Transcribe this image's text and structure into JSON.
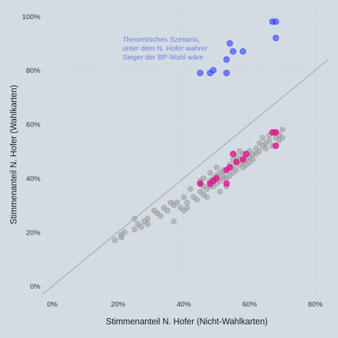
{
  "chart_data": {
    "type": "scatter",
    "title": "",
    "xlabel": "Stimmenanteil N. Hofer (Nicht-Wahlkarten)",
    "ylabel": "Stimmenanteil N. Hofer (Wahlkarten)",
    "xlim": [
      -0.03,
      0.84
    ],
    "ylim": [
      -0.03,
      1.03
    ],
    "x_ticks": [
      0,
      0.2,
      0.4,
      0.6,
      0.8
    ],
    "x_tick_labels": [
      "0%",
      "20%",
      "40%",
      "60%",
      "80%"
    ],
    "y_ticks": [
      0,
      0.2,
      0.4,
      0.6,
      0.8,
      1.0
    ],
    "y_tick_labels": [
      "0%",
      "20%",
      "40%",
      "60%",
      "80%",
      "100%"
    ],
    "grid": true,
    "grid_style": "dotted",
    "reference_line": {
      "type": "diagonal",
      "slope": 1,
      "intercept": 0,
      "color": "#a9adb1"
    },
    "annotation": {
      "lines": [
        "Theoretisches Szenario,",
        "unter dem N. Hofer wahrer",
        "Sieger der BP-Wahl wäre"
      ],
      "color": "#6f79e8"
    },
    "colors": {
      "background": "#d3dce3",
      "gray_points": "#9a9a9a",
      "pink_points": "#e0158a",
      "blue_points": "#2f3dff"
    },
    "series": [
      {
        "role": "other",
        "color": "#9a9a9a",
        "points": [
          [
            0.19,
            0.17
          ],
          [
            0.21,
            0.18
          ],
          [
            0.21,
            0.19
          ],
          [
            0.22,
            0.2
          ],
          [
            0.25,
            0.21
          ],
          [
            0.25,
            0.25
          ],
          [
            0.26,
            0.23
          ],
          [
            0.27,
            0.22
          ],
          [
            0.28,
            0.24
          ],
          [
            0.29,
            0.23
          ],
          [
            0.29,
            0.25
          ],
          [
            0.31,
            0.28
          ],
          [
            0.32,
            0.27
          ],
          [
            0.33,
            0.26
          ],
          [
            0.34,
            0.29
          ],
          [
            0.35,
            0.28
          ],
          [
            0.36,
            0.31
          ],
          [
            0.37,
            0.3
          ],
          [
            0.37,
            0.24
          ],
          [
            0.38,
            0.31
          ],
          [
            0.39,
            0.29
          ],
          [
            0.4,
            0.28
          ],
          [
            0.4,
            0.33
          ],
          [
            0.41,
            0.31
          ],
          [
            0.41,
            0.29
          ],
          [
            0.42,
            0.36
          ],
          [
            0.43,
            0.33
          ],
          [
            0.44,
            0.32
          ],
          [
            0.45,
            0.35
          ],
          [
            0.45,
            0.38
          ],
          [
            0.45,
            0.39
          ],
          [
            0.46,
            0.34
          ],
          [
            0.46,
            0.37
          ],
          [
            0.47,
            0.36
          ],
          [
            0.47,
            0.33
          ],
          [
            0.48,
            0.37
          ],
          [
            0.48,
            0.39
          ],
          [
            0.48,
            0.42
          ],
          [
            0.49,
            0.4
          ],
          [
            0.49,
            0.37
          ],
          [
            0.5,
            0.41
          ],
          [
            0.5,
            0.44
          ],
          [
            0.5,
            0.38
          ],
          [
            0.51,
            0.39
          ],
          [
            0.51,
            0.42
          ],
          [
            0.51,
            0.35
          ],
          [
            0.52,
            0.41
          ],
          [
            0.52,
            0.43
          ],
          [
            0.53,
            0.4
          ],
          [
            0.53,
            0.37
          ],
          [
            0.54,
            0.45
          ],
          [
            0.54,
            0.41
          ],
          [
            0.55,
            0.42
          ],
          [
            0.55,
            0.44
          ],
          [
            0.55,
            0.47
          ],
          [
            0.56,
            0.43
          ],
          [
            0.56,
            0.46
          ],
          [
            0.56,
            0.48
          ],
          [
            0.57,
            0.45
          ],
          [
            0.57,
            0.47
          ],
          [
            0.57,
            0.5
          ],
          [
            0.58,
            0.44
          ],
          [
            0.58,
            0.46
          ],
          [
            0.58,
            0.49
          ],
          [
            0.59,
            0.47
          ],
          [
            0.59,
            0.45
          ],
          [
            0.6,
            0.48
          ],
          [
            0.6,
            0.5
          ],
          [
            0.6,
            0.46
          ],
          [
            0.61,
            0.49
          ],
          [
            0.61,
            0.47
          ],
          [
            0.62,
            0.51
          ],
          [
            0.62,
            0.49
          ],
          [
            0.63,
            0.53
          ],
          [
            0.63,
            0.5
          ],
          [
            0.64,
            0.52
          ],
          [
            0.64,
            0.55
          ],
          [
            0.65,
            0.53
          ],
          [
            0.65,
            0.51
          ],
          [
            0.66,
            0.56
          ],
          [
            0.66,
            0.54
          ],
          [
            0.67,
            0.52
          ],
          [
            0.68,
            0.55
          ],
          [
            0.68,
            0.57
          ],
          [
            0.69,
            0.56
          ],
          [
            0.69,
            0.54
          ],
          [
            0.7,
            0.58
          ],
          [
            0.7,
            0.55
          ],
          [
            0.52,
            0.4
          ],
          [
            0.46,
            0.4
          ]
        ]
      },
      {
        "role": "highlighted",
        "color": "#e0158a",
        "points": [
          [
            0.45,
            0.38
          ],
          [
            0.48,
            0.38
          ],
          [
            0.49,
            0.39
          ],
          [
            0.5,
            0.4
          ],
          [
            0.53,
            0.38
          ],
          [
            0.53,
            0.43
          ],
          [
            0.54,
            0.44
          ],
          [
            0.55,
            0.49
          ],
          [
            0.56,
            0.46
          ],
          [
            0.58,
            0.47
          ],
          [
            0.59,
            0.49
          ],
          [
            0.67,
            0.57
          ],
          [
            0.68,
            0.57
          ],
          [
            0.68,
            0.52
          ]
        ]
      },
      {
        "role": "scenario",
        "color": "#2f3dff",
        "points": [
          [
            0.45,
            0.79
          ],
          [
            0.48,
            0.79
          ],
          [
            0.49,
            0.8
          ],
          [
            0.53,
            0.79
          ],
          [
            0.53,
            0.84
          ],
          [
            0.54,
            0.9
          ],
          [
            0.55,
            0.87
          ],
          [
            0.58,
            0.87
          ],
          [
            0.67,
            0.98
          ],
          [
            0.68,
            0.98
          ],
          [
            0.68,
            0.92
          ]
        ]
      }
    ]
  }
}
